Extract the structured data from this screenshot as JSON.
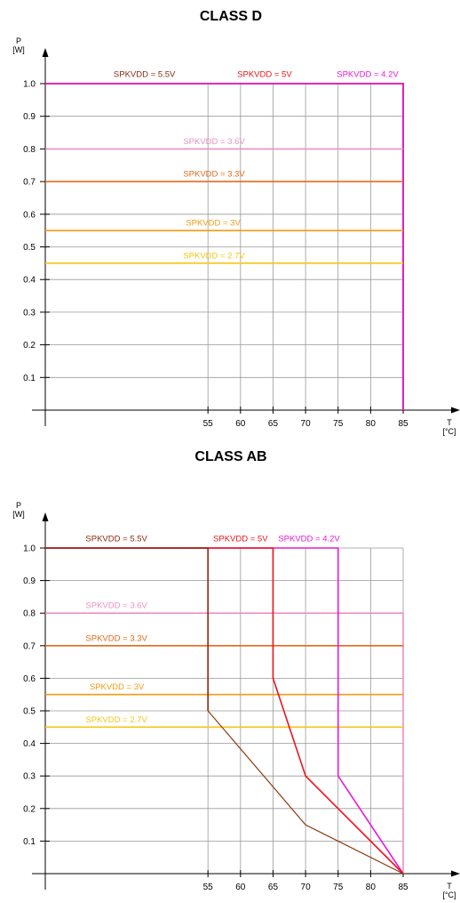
{
  "colors": {
    "spkvdd_5_5": "#8b2a12",
    "spkvdd_5": "#e8141c",
    "spkvdd_4_2": "#e81ad6",
    "spkvdd_3_6": "#ee8fc3",
    "spkvdd_3_3": "#e46a1b",
    "spkvdd_3": "#f59b12",
    "spkvdd_2_7": "#f6c516",
    "curve_5_5": "#8a3b12",
    "grid": "#999999",
    "axis": "#000000"
  },
  "chart_data": [
    {
      "type": "line",
      "title": "CLASS D",
      "ylabel": [
        "P",
        "[W]"
      ],
      "xlabel": [
        "T",
        "[°C]"
      ],
      "x_ticks": [
        55,
        60,
        65,
        70,
        75,
        80,
        85
      ],
      "y_ticks": [
        0.1,
        0.2,
        0.3,
        0.4,
        0.5,
        0.6,
        0.7,
        0.8,
        0.9,
        1.0
      ],
      "y_tick_labels": [
        "0.1",
        "0.2",
        "0.3",
        "0.4",
        "0.5",
        "0.6",
        "0.7",
        "0.8",
        "0.9",
        "1.0"
      ],
      "grid": true,
      "series": [
        {
          "name": "SPKVDD = 5.5V",
          "color_key": "spkvdd_5_5",
          "points": [
            [
              30,
              1.0
            ],
            [
              85,
              1.0
            ],
            [
              85,
              0
            ]
          ],
          "label": {
            "text": "SPKVDD = 5.5V",
            "x": 40.5,
            "y": 1.02
          }
        },
        {
          "name": "SPKVDD = 5V",
          "color_key": "spkvdd_5",
          "points": [
            [
              30,
              1.0
            ],
            [
              85,
              1.0
            ],
            [
              85,
              0
            ]
          ],
          "label": {
            "text": "SPKVDD = 5V",
            "x": 59.5,
            "y": 1.02
          }
        },
        {
          "name": "SPKVDD = 4.2V",
          "color_key": "spkvdd_4_2",
          "points": [
            [
              30,
              1.0
            ],
            [
              85,
              1.0
            ],
            [
              85,
              0
            ]
          ],
          "label": {
            "text": "SPKVDD = 4.2V",
            "x": 74.8,
            "y": 1.02
          }
        },
        {
          "name": "SPKVDD = 3.6V",
          "color_key": "spkvdd_3_6",
          "points": [
            [
              30,
              0.8
            ],
            [
              85,
              0.8
            ]
          ],
          "label": {
            "text": "SPKVDD = 3.6V",
            "x": 51.2,
            "y": 0.815
          }
        },
        {
          "name": "SPKVDD = 3.3V",
          "color_key": "spkvdd_3_3",
          "points": [
            [
              30,
              0.7
            ],
            [
              85,
              0.7
            ]
          ],
          "label": {
            "text": "SPKVDD = 3.3V",
            "x": 51.2,
            "y": 0.715
          }
        },
        {
          "name": "SPKVDD = 3V",
          "color_key": "spkvdd_3",
          "points": [
            [
              30,
              0.55
            ],
            [
              85,
              0.55
            ]
          ],
          "label": {
            "text": "SPKVDD = 3V",
            "x": 51.6,
            "y": 0.565
          }
        },
        {
          "name": "SPKVDD = 2.7V",
          "color_key": "spkvdd_2_7",
          "points": [
            [
              30,
              0.45
            ],
            [
              85,
              0.45
            ]
          ],
          "label": {
            "text": "SPKVDD = 2.7V",
            "x": 51.2,
            "y": 0.465
          }
        }
      ]
    },
    {
      "type": "line",
      "title": "CLASS AB",
      "ylabel": [
        "P",
        "[W]"
      ],
      "xlabel": [
        "T",
        "[°C]"
      ],
      "x_ticks": [
        55,
        60,
        65,
        70,
        75,
        80,
        85
      ],
      "y_ticks": [
        0.1,
        0.2,
        0.3,
        0.4,
        0.5,
        0.6,
        0.7,
        0.8,
        0.9,
        1.0
      ],
      "y_tick_labels": [
        "0.1",
        "0.2",
        "0.3",
        "0.4",
        "0.5",
        "0.6",
        "0.7",
        "0.8",
        "0.9",
        "1.0"
      ],
      "grid": true,
      "series": [
        {
          "name": "SPKVDD = 3.6V",
          "color_key": "spkvdd_3_6",
          "points": [
            [
              30,
              0.8
            ],
            [
              85,
              0.8
            ],
            [
              85,
              0
            ]
          ],
          "label": {
            "text": "SPKVDD = 3.6V",
            "x": 36.2,
            "y": 0.815
          }
        },
        {
          "name": "SPKVDD = 3.3V",
          "color_key": "spkvdd_3_3",
          "points": [
            [
              30,
              0.7
            ],
            [
              85,
              0.7
            ]
          ],
          "label": {
            "text": "SPKVDD = 3.3V",
            "x": 36.2,
            "y": 0.715
          }
        },
        {
          "name": "SPKVDD = 3V",
          "color_key": "spkvdd_3",
          "points": [
            [
              30,
              0.55
            ],
            [
              85,
              0.55
            ]
          ],
          "label": {
            "text": "SPKVDD = 3V",
            "x": 36.8,
            "y": 0.565
          }
        },
        {
          "name": "SPKVDD = 2.7V",
          "color_key": "spkvdd_2_7",
          "points": [
            [
              30,
              0.45
            ],
            [
              85,
              0.45
            ]
          ],
          "label": {
            "text": "SPKVDD = 2.7V",
            "x": 36.2,
            "y": 0.465
          }
        },
        {
          "name": "SPKVDD = 4.2V",
          "color_key": "spkvdd_4_2",
          "points": [
            [
              30,
              1.0
            ],
            [
              75,
              1.0
            ],
            [
              75,
              0.3
            ],
            [
              85,
              0
            ]
          ],
          "label": {
            "text": "SPKVDD = 4.2V",
            "x": 65.8,
            "y": 1.02
          }
        },
        {
          "name": "SPKVDD = 5V",
          "color_key": "spkvdd_5",
          "points": [
            [
              30,
              1.0
            ],
            [
              65,
              1.0
            ],
            [
              65,
              0.6
            ],
            [
              70,
              0.3
            ],
            [
              85,
              0
            ]
          ],
          "label": {
            "text": "SPKVDD = 5V",
            "x": 55.8,
            "y": 1.02
          }
        },
        {
          "name": "SPKVDD = 5.5V",
          "color_key": "spkvdd_5_5",
          "points": [
            [
              30,
              1.0
            ],
            [
              55,
              1.0
            ],
            [
              55,
              0.5
            ],
            [
              70,
              0.15
            ],
            [
              85,
              0
            ]
          ],
          "label": {
            "text": "SPKVDD = 5.5V",
            "x": 36.2,
            "y": 1.02
          },
          "curve_color_key": "curve_5_5",
          "curve_from_index": 2
        }
      ]
    }
  ]
}
